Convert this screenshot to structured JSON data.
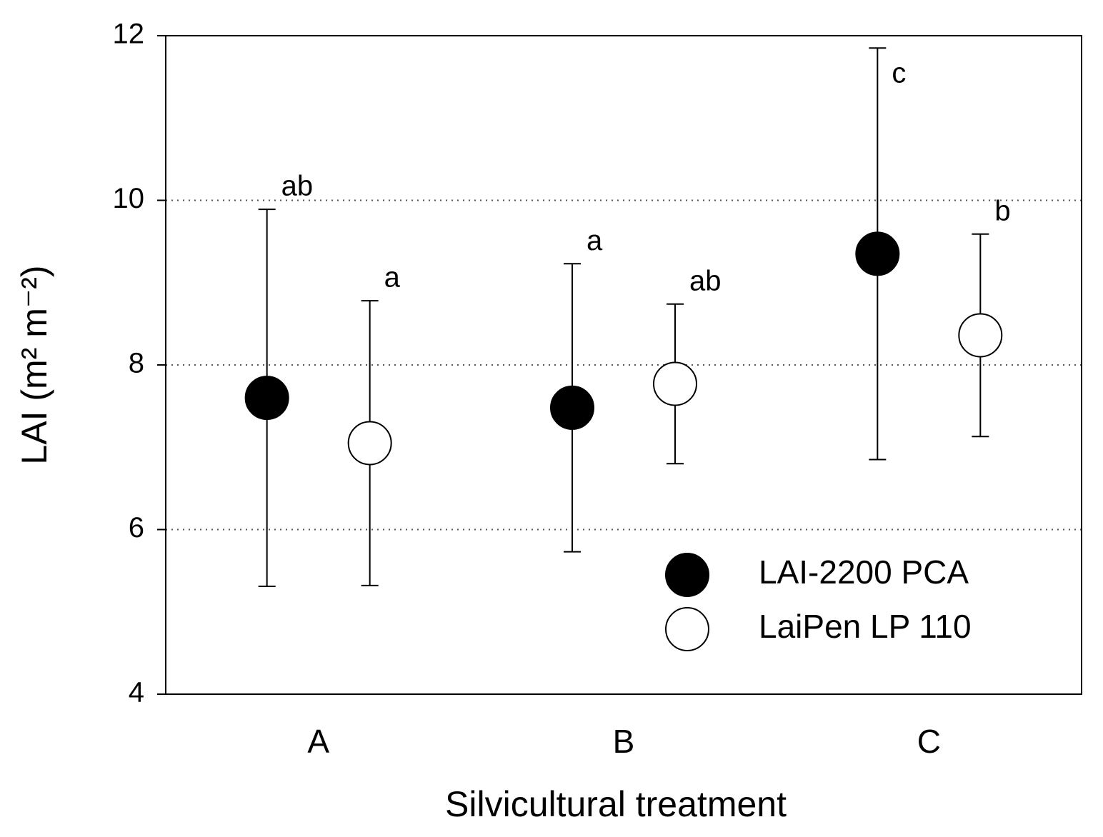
{
  "chart_data": {
    "type": "errorbar-scatter",
    "x_label": "Silvicultural treatment",
    "y_label": "LAI (m² m⁻²)",
    "categories": [
      "A",
      "B",
      "C"
    ],
    "series": [
      {
        "name": "LAI-2200 PCA",
        "color": "#000000",
        "filled": true,
        "values": [
          7.6,
          7.48,
          9.35
        ],
        "errors": [
          2.29,
          1.75,
          2.5
        ],
        "labels": [
          "ab",
          "a",
          "c"
        ]
      },
      {
        "name": "LaiPen LP 110",
        "color": "#000000",
        "filled": false,
        "values": [
          7.05,
          7.77,
          8.36
        ],
        "errors": [
          1.73,
          0.97,
          1.23
        ],
        "labels": [
          "a",
          "ab",
          "b"
        ]
      }
    ],
    "ylim": [
      4,
      12
    ],
    "yticks": [
      4,
      6,
      8,
      10,
      12
    ],
    "grid": true,
    "legend": "lower right"
  }
}
